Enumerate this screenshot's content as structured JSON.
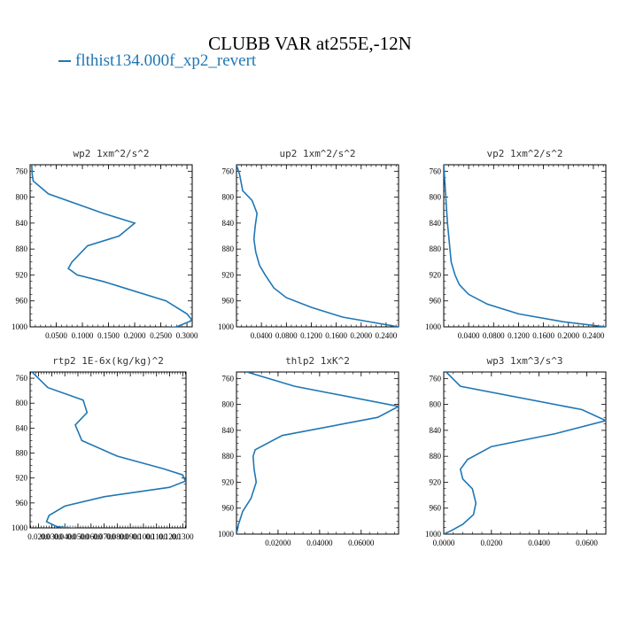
{
  "title": "CLUBB VAR at255E,-12N",
  "legend": {
    "label": "flthist134.000f_xp2_revert",
    "color": "#1f77b4"
  },
  "chart_data": [
    {
      "type": "line",
      "title": "wp2   1xm^2/s^2",
      "xlim": [
        0,
        0.31
      ],
      "ylim": [
        1000,
        750
      ],
      "xticks": [
        0.05,
        0.1,
        0.15,
        0.2,
        0.25,
        0.3
      ],
      "xticklabels": [
        "0.0500",
        "0.1000",
        "0.1500",
        "0.2000",
        "0.2500",
        "0.3000"
      ],
      "yticks": [
        760,
        800,
        840,
        880,
        920,
        960,
        1000
      ],
      "series": [
        {
          "x": [
            0.003,
            0.004,
            0.006,
            0.035,
            0.14,
            0.2,
            0.17,
            0.11,
            0.08,
            0.073,
            0.09,
            0.14,
            0.26,
            0.3,
            0.31,
            0.28,
            0.2,
            0.0
          ],
          "y": [
            750,
            765,
            775,
            795,
            825,
            840,
            860,
            875,
            900,
            910,
            920,
            930,
            960,
            980,
            990,
            1000,
            1005,
            1007
          ]
        }
      ]
    },
    {
      "type": "line",
      "title": "up2   1xm^2/s^2",
      "xlim": [
        0,
        0.26
      ],
      "ylim": [
        1000,
        750
      ],
      "xticks": [
        0.04,
        0.08,
        0.12,
        0.16,
        0.2,
        0.24
      ],
      "xticklabels": [
        "0.0400",
        "0.0800",
        "0.1200",
        "0.1600",
        "0.2000",
        "0.2400"
      ],
      "yticks": [
        760,
        800,
        840,
        880,
        920,
        960,
        1000
      ],
      "series": [
        {
          "x": [
            0.0,
            0.005,
            0.01,
            0.025,
            0.033,
            0.03,
            0.028,
            0.031,
            0.037,
            0.046,
            0.06,
            0.08,
            0.12,
            0.17,
            0.26
          ],
          "y": [
            750,
            765,
            790,
            805,
            825,
            845,
            865,
            885,
            905,
            920,
            940,
            955,
            970,
            985,
            1000
          ]
        }
      ]
    },
    {
      "type": "line",
      "title": "vp2   1xm^2/s^2",
      "xlim": [
        0,
        0.26
      ],
      "ylim": [
        1000,
        750
      ],
      "xticks": [
        0.04,
        0.08,
        0.12,
        0.16,
        0.2,
        0.24
      ],
      "xticklabels": [
        "0.0400",
        "0.0800",
        "0.1200",
        "0.1600",
        "0.2000",
        "0.2400"
      ],
      "yticks": [
        760,
        800,
        840,
        880,
        920,
        960,
        1000
      ],
      "series": [
        {
          "x": [
            0.0,
            0.002,
            0.004,
            0.006,
            0.008,
            0.01,
            0.012,
            0.018,
            0.025,
            0.04,
            0.07,
            0.12,
            0.19,
            0.26
          ],
          "y": [
            750,
            780,
            810,
            840,
            860,
            880,
            900,
            920,
            935,
            950,
            965,
            980,
            992,
            1000
          ]
        }
      ]
    },
    {
      "type": "line",
      "title": "rtp2   1E-6x(kg/kg)^2",
      "xlim": [
        0.0135,
        0.1325
      ],
      "ylim": [
        1000,
        750
      ],
      "xticks": [
        0.02,
        0.03,
        0.04,
        0.05,
        0.06,
        0.07,
        0.08,
        0.09,
        0.1,
        0.11,
        0.12,
        0.13
      ],
      "xticklabels": [
        "0.0200",
        "0.0300",
        "0.0400",
        "0.0500",
        "0.0600",
        "0.0700",
        "0.0800",
        "0.0900",
        "0.1000",
        "0.1100",
        "0.1200",
        "0.1300"
      ],
      "yticks": [
        760,
        800,
        840,
        880,
        920,
        960,
        1000
      ],
      "series": [
        {
          "x": [
            0.015,
            0.027,
            0.054,
            0.057,
            0.048,
            0.053,
            0.08,
            0.115,
            0.13,
            0.132,
            0.12,
            0.07,
            0.04,
            0.028,
            0.026,
            0.034,
            0.058
          ],
          "y": [
            750,
            775,
            795,
            815,
            835,
            860,
            885,
            905,
            915,
            925,
            935,
            950,
            965,
            980,
            990,
            998,
            1003
          ]
        }
      ]
    },
    {
      "type": "line",
      "title": "thlp2   1xK^2",
      "xlim": [
        0,
        0.078
      ],
      "ylim": [
        1000,
        750
      ],
      "xticks": [
        0.02,
        0.04,
        0.06
      ],
      "xticklabels": [
        "0.02000",
        "0.04000",
        "0.06000"
      ],
      "yticks": [
        760,
        800,
        840,
        880,
        920,
        960,
        1000
      ],
      "series": [
        {
          "x": [
            0.005,
            0.028,
            0.078,
            0.068,
            0.022,
            0.009,
            0.008,
            0.0085,
            0.0095,
            0.007,
            0.003,
            0.001,
            0.0
          ],
          "y": [
            750,
            772,
            803,
            820,
            848,
            870,
            880,
            900,
            920,
            945,
            965,
            985,
            1000
          ]
        }
      ]
    },
    {
      "type": "line",
      "title": "wp3   1xm^3/s^3",
      "xlim": [
        0,
        0.068
      ],
      "ylim": [
        1000,
        750
      ],
      "xticks": [
        0.0,
        0.02,
        0.04,
        0.06
      ],
      "xticklabels": [
        "0.0000",
        "0.0200",
        "0.0400",
        "0.0600"
      ],
      "yticks": [
        760,
        800,
        840,
        880,
        920,
        960,
        1000
      ],
      "series": [
        {
          "x": [
            0.001,
            0.007,
            0.058,
            0.068,
            0.047,
            0.02,
            0.01,
            0.007,
            0.008,
            0.012,
            0.0135,
            0.0125,
            0.008,
            0.003,
            0.0
          ],
          "y": [
            750,
            772,
            808,
            825,
            845,
            865,
            885,
            900,
            915,
            930,
            952,
            970,
            985,
            995,
            1000
          ]
        }
      ]
    }
  ]
}
